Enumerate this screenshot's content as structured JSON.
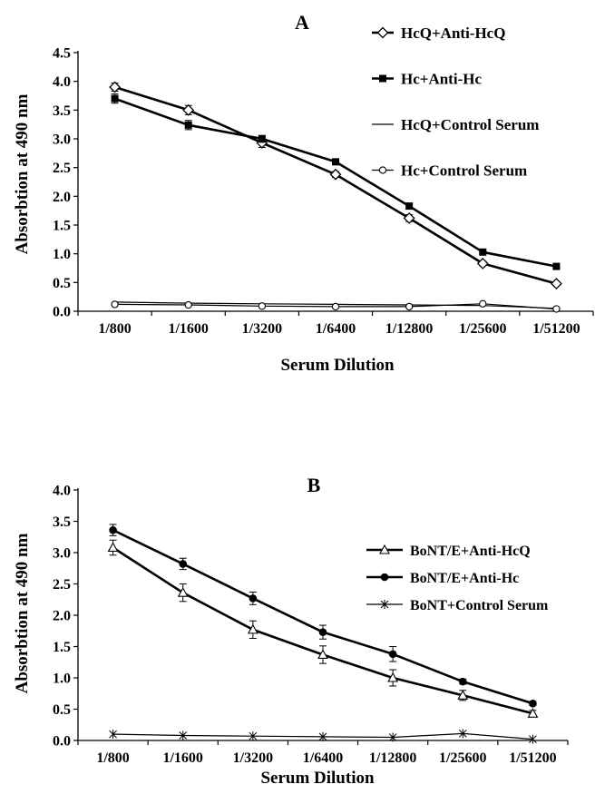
{
  "chart_data": [
    {
      "type": "line",
      "title": "A",
      "xlabel": "Serum Dilution",
      "ylabel": "Absorbtion at 490 nm",
      "categories": [
        "1/800",
        "1/1600",
        "1/3200",
        "1/6400",
        "1/12800",
        "1/25600",
        "1/51200"
      ],
      "ylim": [
        0,
        4.5
      ],
      "yticks": [
        "0.0",
        "0.5",
        "1.0",
        "1.5",
        "2.0",
        "2.5",
        "3.0",
        "3.5",
        "4.0",
        "4.5"
      ],
      "grid": false,
      "legend_position": "top-right",
      "series": [
        {
          "name": "HcQ+Anti-HcQ",
          "marker": "diamond-open",
          "color": "#000000",
          "values": [
            3.9,
            3.5,
            2.93,
            2.38,
            1.62,
            0.83,
            0.48
          ],
          "errors": [
            0.07,
            0.08,
            0.08,
            0.05,
            0.06,
            0.04,
            0.03
          ]
        },
        {
          "name": "Hc+Anti-Hc",
          "marker": "square-filled",
          "color": "#000000",
          "values": [
            3.7,
            3.24,
            3.0,
            2.6,
            1.83,
            1.03,
            0.78
          ],
          "errors": [
            0.08,
            0.08,
            0.06,
            0.05,
            0.05,
            0.03,
            0.03
          ]
        },
        {
          "name": "HcQ+Control Serum",
          "marker": "dash",
          "color": "#000000",
          "values": [
            0.16,
            0.14,
            0.13,
            0.12,
            0.11,
            0.1,
            0.05
          ],
          "errors": [
            0,
            0,
            0,
            0,
            0,
            0,
            0
          ]
        },
        {
          "name": "Hc+Control Serum",
          "marker": "circle-open",
          "color": "#000000",
          "values": [
            0.12,
            0.11,
            0.09,
            0.08,
            0.08,
            0.13,
            0.04
          ],
          "errors": [
            0,
            0,
            0,
            0,
            0,
            0,
            0
          ]
        }
      ]
    },
    {
      "type": "line",
      "title": "B",
      "xlabel": "Serum Dilution",
      "ylabel": "Absorbtion at 490 nm",
      "categories": [
        "1/800",
        "1/1600",
        "1/3200",
        "1/6400",
        "1/12800",
        "1/25600",
        "1/51200"
      ],
      "ylim": [
        0,
        4.0
      ],
      "yticks": [
        "0.0",
        "0.5",
        "1.0",
        "1.5",
        "2.0",
        "2.5",
        "3.0",
        "3.5",
        "4.0"
      ],
      "grid": false,
      "legend_position": "right",
      "series": [
        {
          "name": "BoNT/E+Anti-HcQ",
          "marker": "triangle-open",
          "color": "#000000",
          "values": [
            3.08,
            2.36,
            1.77,
            1.37,
            1.0,
            0.72,
            0.43
          ],
          "errors": [
            0.12,
            0.14,
            0.14,
            0.14,
            0.13,
            0.08,
            0.05
          ]
        },
        {
          "name": "BoNT/E+Anti-Hc",
          "marker": "circle-filled",
          "color": "#000000",
          "values": [
            3.36,
            2.82,
            2.27,
            1.73,
            1.38,
            0.94,
            0.59
          ],
          "errors": [
            0.09,
            0.09,
            0.1,
            0.11,
            0.12,
            0.04,
            0.03
          ]
        },
        {
          "name": "BoNT+Control Serum",
          "marker": "star",
          "color": "#000000",
          "values": [
            0.1,
            0.08,
            0.07,
            0.06,
            0.05,
            0.11,
            0.02
          ],
          "errors": [
            0,
            0,
            0,
            0,
            0,
            0,
            0
          ]
        }
      ]
    }
  ]
}
